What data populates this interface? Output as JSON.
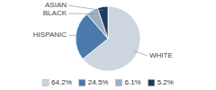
{
  "chart_data": {
    "type": "pie",
    "categories": [
      "WHITE",
      "HISPANIC",
      "BLACK",
      "ASIAN"
    ],
    "values": [
      64.2,
      24.5,
      6.1,
      5.2
    ],
    "value_labels": [
      "64.2%",
      "24.5%",
      "6.1%",
      "5.2%"
    ],
    "colors": [
      "#ccd5e0",
      "#4a7aab",
      "#9aafc4",
      "#1b3a5c"
    ],
    "legend": "bottom"
  }
}
